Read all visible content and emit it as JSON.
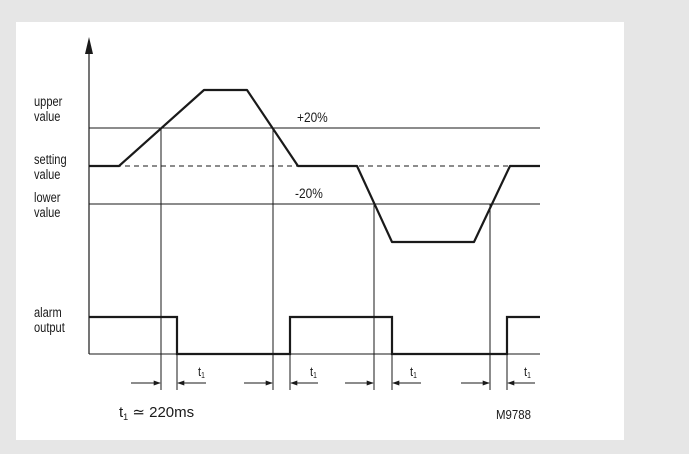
{
  "labels": {
    "upper_value": [
      "upper",
      "value"
    ],
    "setting_value": [
      "setting",
      "value"
    ],
    "lower_value": [
      "lower",
      "value"
    ],
    "alarm_output": [
      "alarm",
      "output"
    ]
  },
  "thresholds": {
    "plus": "+20%",
    "minus": "-20%"
  },
  "delay_symbol": {
    "base": "t",
    "sub": "1"
  },
  "note": {
    "symbol": "t",
    "sub": "1",
    "relation": "≃",
    "value": "220ms"
  },
  "figure_code": "M9788",
  "colors": {
    "background": "#e6e6e6",
    "panel": "#ffffff",
    "ink": "#1a1a1a"
  }
}
